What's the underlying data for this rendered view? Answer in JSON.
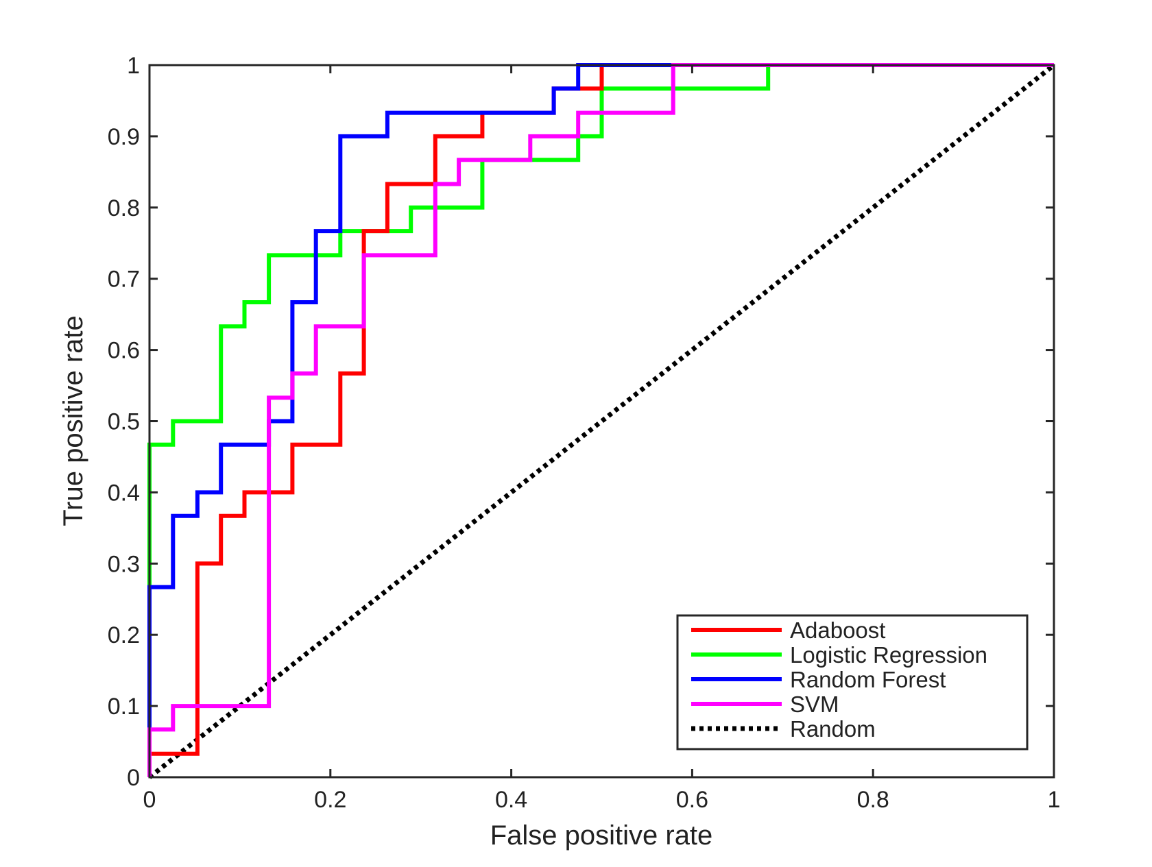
{
  "chart_data": {
    "type": "line",
    "title": "",
    "xlabel": "False positive rate",
    "ylabel": "True positive rate",
    "xlim": [
      0,
      1
    ],
    "ylim": [
      0,
      1
    ],
    "xticks": [
      0,
      0.2,
      0.4,
      0.6,
      0.8,
      1
    ],
    "yticks": [
      0,
      0.1,
      0.2,
      0.3,
      0.4,
      0.5,
      0.6,
      0.7,
      0.8,
      0.9,
      1
    ],
    "xtick_labels": [
      "0",
      "0.2",
      "0.4",
      "0.6",
      "0.8",
      "1"
    ],
    "ytick_labels": [
      "0",
      "0.1",
      "0.2",
      "0.3",
      "0.4",
      "0.5",
      "0.6",
      "0.7",
      "0.8",
      "0.9",
      "1"
    ],
    "grid": false,
    "legend_position": "bottom-right",
    "series": [
      {
        "name": "Adaboost",
        "color": "#ff0000",
        "style": "solid",
        "points": [
          [
            0,
            0
          ],
          [
            0,
            0.033
          ],
          [
            0.053,
            0.033
          ],
          [
            0.053,
            0.3
          ],
          [
            0.079,
            0.3
          ],
          [
            0.079,
            0.367
          ],
          [
            0.105,
            0.367
          ],
          [
            0.105,
            0.4
          ],
          [
            0.158,
            0.4
          ],
          [
            0.158,
            0.467
          ],
          [
            0.211,
            0.467
          ],
          [
            0.211,
            0.567
          ],
          [
            0.237,
            0.567
          ],
          [
            0.237,
            0.767
          ],
          [
            0.263,
            0.767
          ],
          [
            0.263,
            0.833
          ],
          [
            0.316,
            0.833
          ],
          [
            0.316,
            0.9
          ],
          [
            0.368,
            0.9
          ],
          [
            0.368,
            0.933
          ],
          [
            0.447,
            0.933
          ],
          [
            0.447,
            0.967
          ],
          [
            0.5,
            0.967
          ],
          [
            0.5,
            1
          ],
          [
            1,
            1
          ]
        ]
      },
      {
        "name": "Logistic Regression",
        "color": "#00ff00",
        "style": "solid",
        "points": [
          [
            0,
            0.267
          ],
          [
            0,
            0.467
          ],
          [
            0.026,
            0.467
          ],
          [
            0.026,
            0.5
          ],
          [
            0.079,
            0.5
          ],
          [
            0.079,
            0.633
          ],
          [
            0.105,
            0.633
          ],
          [
            0.105,
            0.667
          ],
          [
            0.132,
            0.667
          ],
          [
            0.132,
            0.733
          ],
          [
            0.211,
            0.733
          ],
          [
            0.211,
            0.767
          ],
          [
            0.289,
            0.767
          ],
          [
            0.289,
            0.8
          ],
          [
            0.368,
            0.8
          ],
          [
            0.368,
            0.867
          ],
          [
            0.474,
            0.867
          ],
          [
            0.474,
            0.9
          ],
          [
            0.5,
            0.9
          ],
          [
            0.5,
            0.967
          ],
          [
            0.684,
            0.967
          ],
          [
            0.684,
            1
          ],
          [
            1,
            1
          ]
        ]
      },
      {
        "name": "Random Forest",
        "color": "#0000ff",
        "style": "solid",
        "points": [
          [
            0,
            0.067
          ],
          [
            0,
            0.267
          ],
          [
            0.026,
            0.267
          ],
          [
            0.026,
            0.367
          ],
          [
            0.053,
            0.367
          ],
          [
            0.053,
            0.4
          ],
          [
            0.079,
            0.4
          ],
          [
            0.079,
            0.467
          ],
          [
            0.132,
            0.467
          ],
          [
            0.132,
            0.5
          ],
          [
            0.158,
            0.5
          ],
          [
            0.158,
            0.667
          ],
          [
            0.184,
            0.667
          ],
          [
            0.184,
            0.767
          ],
          [
            0.211,
            0.767
          ],
          [
            0.211,
            0.9
          ],
          [
            0.263,
            0.9
          ],
          [
            0.263,
            0.933
          ],
          [
            0.447,
            0.933
          ],
          [
            0.447,
            0.967
          ],
          [
            0.474,
            0.967
          ],
          [
            0.474,
            1
          ],
          [
            1,
            1
          ]
        ]
      },
      {
        "name": "SVM",
        "color": "#ff00ff",
        "style": "solid",
        "points": [
          [
            0,
            0
          ],
          [
            0,
            0.067
          ],
          [
            0.026,
            0.067
          ],
          [
            0.026,
            0.1
          ],
          [
            0.132,
            0.1
          ],
          [
            0.132,
            0.533
          ],
          [
            0.158,
            0.533
          ],
          [
            0.158,
            0.567
          ],
          [
            0.184,
            0.567
          ],
          [
            0.184,
            0.633
          ],
          [
            0.237,
            0.633
          ],
          [
            0.237,
            0.733
          ],
          [
            0.316,
            0.733
          ],
          [
            0.316,
            0.833
          ],
          [
            0.342,
            0.833
          ],
          [
            0.342,
            0.867
          ],
          [
            0.421,
            0.867
          ],
          [
            0.421,
            0.9
          ],
          [
            0.474,
            0.9
          ],
          [
            0.474,
            0.933
          ],
          [
            0.579,
            0.933
          ],
          [
            0.579,
            1
          ],
          [
            1,
            1
          ]
        ]
      },
      {
        "name": "Random",
        "color": "#000000",
        "style": "dotted",
        "points": [
          [
            0,
            0
          ],
          [
            1,
            1
          ]
        ]
      }
    ]
  }
}
